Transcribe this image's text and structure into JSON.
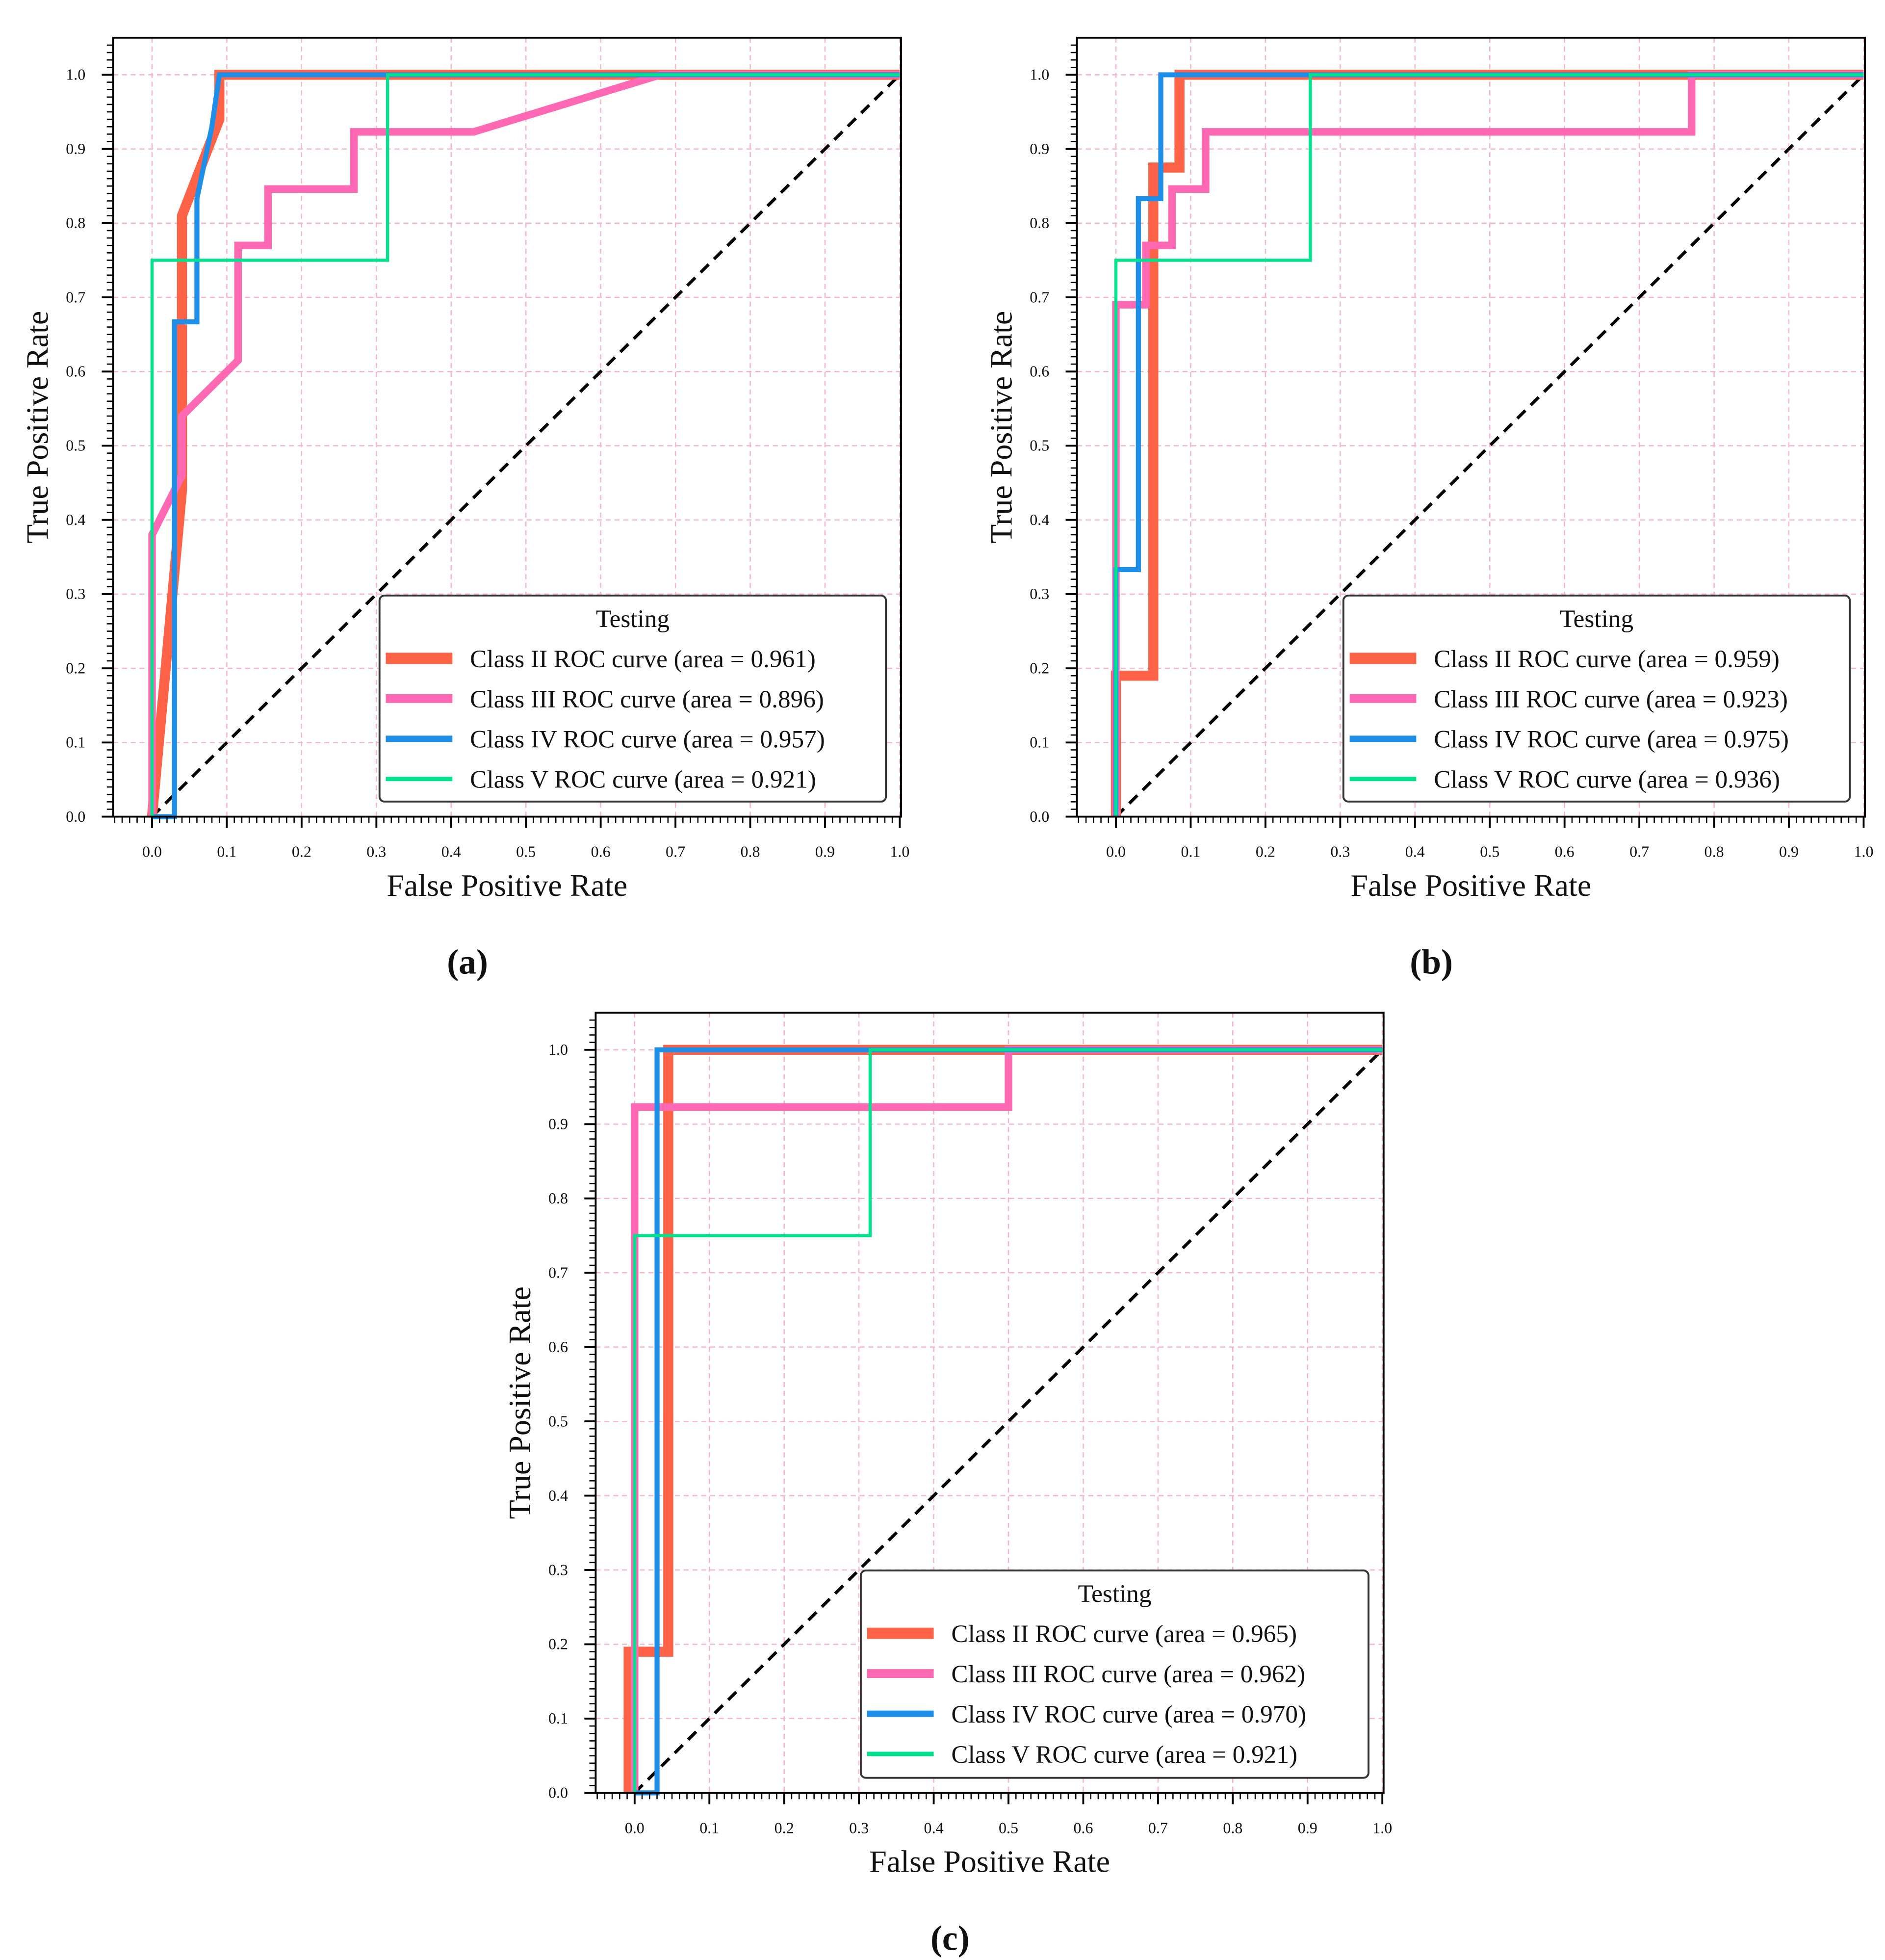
{
  "colors": {
    "class_ii": "#FF6347",
    "class_iii": "#FF69B4",
    "class_iv": "#1E8FE8",
    "class_v": "#00E38C",
    "diagonal": "#000000",
    "grid": "#F4B8C4"
  },
  "chart_data": [
    {
      "type": "line",
      "panel_label": "(a)",
      "xlabel": "False Positive Rate",
      "ylabel": "True Positive Rate",
      "xlim": [
        -0.052,
        1.0
      ],
      "ylim": [
        0,
        1.05
      ],
      "xticks": [
        "0.0",
        "0.1",
        "0.2",
        "0.3",
        "0.4",
        "0.5",
        "0.6",
        "0.7",
        "0.8",
        "0.9",
        "1.0"
      ],
      "yticks": [
        "0.0",
        "0.1",
        "0.2",
        "0.3",
        "0.4",
        "0.5",
        "0.6",
        "0.7",
        "0.8",
        "0.9",
        "1.0"
      ],
      "grid": true,
      "legend_title": "Testing",
      "legend_position": "lower-right",
      "series": [
        {
          "name": "Class II  ROC curve (area = 0.961)",
          "key": "class_ii",
          "points": [
            [
              0,
              0
            ],
            [
              0.04,
              0.44
            ],
            [
              0.04,
              0.81
            ],
            [
              0.09,
              0.94
            ],
            [
              0.09,
              1
            ],
            [
              1,
              1
            ]
          ]
        },
        {
          "name": "Class III  ROC curve (area = 0.896)",
          "key": "class_iii",
          "points": [
            [
              0,
              0
            ],
            [
              0,
              0.38
            ],
            [
              0.04,
              0.46
            ],
            [
              0.04,
              0.54
            ],
            [
              0.115,
              0.615
            ],
            [
              0.115,
              0.77
            ],
            [
              0.155,
              0.77
            ],
            [
              0.155,
              0.846
            ],
            [
              0.27,
              0.846
            ],
            [
              0.27,
              0.923
            ],
            [
              0.43,
              0.923
            ],
            [
              0.68,
              1
            ],
            [
              1,
              1
            ]
          ]
        },
        {
          "name": "Class IV  ROC curve (area = 0.957)",
          "key": "class_iv",
          "points": [
            [
              0,
              0
            ],
            [
              0.03,
              0
            ],
            [
              0.03,
              0.667
            ],
            [
              0.06,
              0.667
            ],
            [
              0.06,
              0.833
            ],
            [
              0.08,
              0.93
            ],
            [
              0.09,
              1
            ],
            [
              1,
              1
            ]
          ]
        },
        {
          "name": "Class V  ROC curve (area = 0.921)",
          "key": "class_v",
          "points": [
            [
              0,
              0
            ],
            [
              0,
              0.75
            ],
            [
              0.315,
              0.75
            ],
            [
              0.315,
              1
            ],
            [
              1,
              1
            ]
          ]
        }
      ]
    },
    {
      "type": "line",
      "panel_label": "(b)",
      "xlabel": "False Positive Rate",
      "ylabel": "True Positive Rate",
      "xlim": [
        -0.052,
        1.0
      ],
      "ylim": [
        0,
        1.05
      ],
      "xticks": [
        "0.0",
        "0.1",
        "0.2",
        "0.3",
        "0.4",
        "0.5",
        "0.6",
        "0.7",
        "0.8",
        "0.9",
        "1.0"
      ],
      "yticks": [
        "0.0",
        "0.1",
        "0.2",
        "0.3",
        "0.4",
        "0.5",
        "0.6",
        "0.7",
        "0.8",
        "0.9",
        "1.0"
      ],
      "grid": true,
      "legend_title": "Testing",
      "legend_position": "lower-right",
      "series": [
        {
          "name": "Class II  ROC curve (area = 0.959)",
          "key": "class_ii",
          "points": [
            [
              0,
              0
            ],
            [
              0,
              0.19
            ],
            [
              0.05,
              0.19
            ],
            [
              0.05,
              0.875
            ],
            [
              0.085,
              0.875
            ],
            [
              0.085,
              1
            ],
            [
              1,
              1
            ]
          ]
        },
        {
          "name": "Class III  ROC curve (area = 0.923)",
          "key": "class_iii",
          "points": [
            [
              0,
              0
            ],
            [
              0,
              0.69
            ],
            [
              0.04,
              0.69
            ],
            [
              0.04,
              0.77
            ],
            [
              0.075,
              0.77
            ],
            [
              0.075,
              0.846
            ],
            [
              0.12,
              0.846
            ],
            [
              0.12,
              0.923
            ],
            [
              0.77,
              0.923
            ],
            [
              0.77,
              1
            ],
            [
              1,
              1
            ]
          ]
        },
        {
          "name": "Class IV  ROC curve (area = 0.975)",
          "key": "class_iv",
          "points": [
            [
              0,
              0
            ],
            [
              0,
              0.333
            ],
            [
              0.03,
              0.333
            ],
            [
              0.03,
              0.833
            ],
            [
              0.06,
              0.833
            ],
            [
              0.06,
              1
            ],
            [
              1,
              1
            ]
          ]
        },
        {
          "name": "Class V  ROC curve (area = 0.936)",
          "key": "class_v",
          "points": [
            [
              0,
              0
            ],
            [
              0,
              0.75
            ],
            [
              0.26,
              0.75
            ],
            [
              0.26,
              1
            ],
            [
              1,
              1
            ]
          ]
        }
      ]
    },
    {
      "type": "line",
      "panel_label": "(c)",
      "xlabel": "False Positive Rate",
      "ylabel": "True Positive Rate",
      "xlim": [
        -0.052,
        1.0
      ],
      "ylim": [
        0,
        1.05
      ],
      "xticks": [
        "0.0",
        "0.1",
        "0.2",
        "0.3",
        "0.4",
        "0.5",
        "0.6",
        "0.7",
        "0.8",
        "0.9",
        "1.0"
      ],
      "yticks": [
        "0.0",
        "0.1",
        "0.2",
        "0.3",
        "0.4",
        "0.5",
        "0.6",
        "0.7",
        "0.8",
        "0.9",
        "1.0"
      ],
      "grid": true,
      "legend_title": "Testing",
      "legend_position": "lower-right",
      "series": [
        {
          "name": "Class II  ROC curve (area = 0.965)",
          "key": "class_ii",
          "points": [
            [
              -0.008,
              0
            ],
            [
              -0.008,
              0.19
            ],
            [
              0.045,
              0.19
            ],
            [
              0.045,
              1
            ],
            [
              1,
              1
            ]
          ]
        },
        {
          "name": "Class III  ROC curve (area = 0.962)",
          "key": "class_iii",
          "points": [
            [
              0,
              0
            ],
            [
              0,
              0.923
            ],
            [
              0.5,
              0.923
            ],
            [
              0.5,
              1
            ],
            [
              1,
              1
            ]
          ]
        },
        {
          "name": "Class IV  ROC curve (area = 0.970)",
          "key": "class_iv",
          "points": [
            [
              0,
              0
            ],
            [
              0.03,
              0
            ],
            [
              0.03,
              1
            ],
            [
              1,
              1
            ]
          ]
        },
        {
          "name": "Class V  ROC curve (area = 0.921)",
          "key": "class_v",
          "points": [
            [
              0,
              0
            ],
            [
              0,
              0.75
            ],
            [
              0.315,
              0.75
            ],
            [
              0.315,
              1
            ],
            [
              1,
              1
            ]
          ]
        }
      ]
    }
  ]
}
